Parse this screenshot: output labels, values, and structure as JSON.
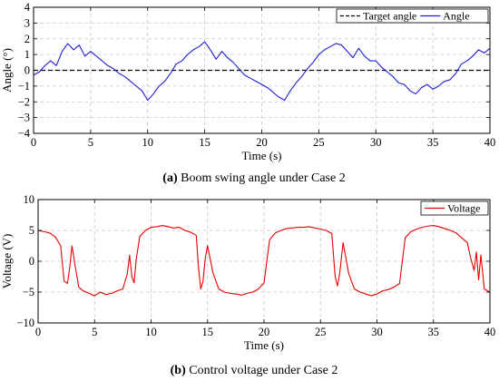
{
  "figure": {
    "panels": [
      {
        "caption_letter": "(a)",
        "caption_text": " Boom swing angle under Case 2"
      },
      {
        "caption_letter": "(b)",
        "caption_text": " Control voltage under Case 2"
      }
    ]
  },
  "chart_data": [
    {
      "type": "line",
      "title": "",
      "xlabel": "Time (s)",
      "ylabel": "Angle (°)",
      "xlim": [
        0,
        40
      ],
      "ylim": [
        -4,
        4
      ],
      "xticks": [
        0,
        5,
        10,
        15,
        20,
        25,
        30,
        35,
        40
      ],
      "yticks": [
        -4,
        -3,
        -2,
        -1,
        0,
        1,
        2,
        3,
        4
      ],
      "grid": true,
      "legend_position": "top-right",
      "series": [
        {
          "name": "Target angle",
          "color": "#000000",
          "dash": true,
          "x": [
            0,
            40
          ],
          "y": [
            0,
            0
          ]
        },
        {
          "name": "Angle",
          "color": "#1f1fd6",
          "dash": false,
          "x": [
            0,
            0.5,
            1,
            1.5,
            2,
            2.5,
            3,
            3.5,
            4,
            4.5,
            5,
            5.5,
            6,
            6.5,
            7,
            7.5,
            8,
            8.5,
            9,
            9.5,
            10,
            10.5,
            11,
            11.5,
            12,
            12.5,
            13,
            13.5,
            14,
            14.5,
            15,
            15.5,
            16,
            16.5,
            17,
            17.5,
            18,
            18.5,
            19,
            19.5,
            20,
            20.5,
            21,
            21.5,
            22,
            22.5,
            23,
            23.5,
            24,
            24.5,
            25,
            25.5,
            26,
            26.5,
            27,
            27.5,
            28,
            28.5,
            29,
            29.5,
            30,
            30.5,
            31,
            31.5,
            32,
            32.5,
            33,
            33.5,
            34,
            34.5,
            35,
            35.5,
            36,
            36.5,
            37,
            37.5,
            38,
            38.5,
            39,
            39.5,
            40
          ],
          "y": [
            -0.3,
            -0.1,
            0.3,
            0.6,
            0.3,
            1.2,
            1.7,
            1.3,
            1.6,
            0.9,
            1.2,
            0.9,
            0.6,
            0.3,
            0.1,
            -0.2,
            -0.4,
            -0.7,
            -1.0,
            -1.3,
            -1.9,
            -1.5,
            -1.0,
            -0.7,
            -0.2,
            0.4,
            0.6,
            1.0,
            1.3,
            1.5,
            1.8,
            1.3,
            0.7,
            1.2,
            0.8,
            0.5,
            0.1,
            -0.3,
            -0.5,
            -0.7,
            -0.9,
            -1.1,
            -1.4,
            -1.7,
            -1.9,
            -1.3,
            -0.8,
            -0.4,
            0.1,
            0.5,
            1.0,
            1.3,
            1.5,
            1.7,
            1.6,
            1.2,
            0.8,
            1.4,
            0.9,
            0.6,
            0.6,
            0.2,
            -0.1,
            -0.4,
            -0.8,
            -0.9,
            -1.3,
            -1.5,
            -1.1,
            -0.9,
            -1.2,
            -1.0,
            -0.7,
            -0.6,
            -0.2,
            0.4,
            0.6,
            0.9,
            1.3,
            1.1,
            1.4
          ]
        }
      ]
    },
    {
      "type": "line",
      "title": "",
      "xlabel": "Time (s)",
      "ylabel": "Voltage (V)",
      "xlim": [
        0,
        40
      ],
      "ylim": [
        -10,
        10
      ],
      "xticks": [
        0,
        5,
        10,
        15,
        20,
        25,
        30,
        35,
        40
      ],
      "yticks": [
        -10,
        -5,
        0,
        5,
        10
      ],
      "grid": true,
      "legend_position": "top-right",
      "series": [
        {
          "name": "Voltage",
          "color": "#e60000",
          "dash": false,
          "x": [
            0,
            0.5,
            1,
            1.5,
            2,
            2.3,
            2.6,
            2.8,
            3,
            3.3,
            3.6,
            4,
            4.5,
            5,
            5.5,
            6,
            6.5,
            7,
            7.5,
            7.9,
            8.1,
            8.3,
            8.5,
            8.7,
            9,
            9.5,
            10,
            10.5,
            11,
            11.5,
            12,
            12.5,
            13,
            13.5,
            14,
            14.2,
            14.4,
            14.6,
            14.8,
            15,
            15.5,
            16,
            16.5,
            17,
            17.5,
            18,
            18.5,
            19,
            19.5,
            20,
            20.5,
            21,
            21.5,
            22,
            22.5,
            23,
            23.5,
            24,
            24.5,
            25,
            25.5,
            26,
            26.3,
            26.5,
            26.7,
            27,
            27.5,
            28,
            28.5,
            29,
            29.5,
            30,
            30.5,
            31,
            31.5,
            32,
            32.5,
            33,
            33.5,
            34,
            34.5,
            35,
            35.5,
            36,
            36.5,
            37,
            37.5,
            38,
            38.3,
            38.6,
            38.8,
            39,
            39.2,
            39.5,
            40
          ],
          "y": [
            5.0,
            4.8,
            4.6,
            4.0,
            2.5,
            -3.2,
            -3.6,
            -1.0,
            2.5,
            -1.0,
            -4.2,
            -4.8,
            -5.2,
            -5.6,
            -5.0,
            -5.4,
            -5.2,
            -4.8,
            -4.5,
            -2.0,
            1.0,
            -2.5,
            -3.5,
            0.5,
            4.0,
            5.0,
            5.5,
            5.6,
            5.8,
            5.6,
            5.4,
            5.5,
            5.0,
            4.7,
            4.2,
            -1.0,
            -4.5,
            -3.2,
            0.5,
            2.5,
            -2.0,
            -4.5,
            -5.0,
            -5.2,
            -5.3,
            -5.5,
            -5.2,
            -5.0,
            -4.5,
            -3.5,
            3.5,
            4.6,
            5.0,
            5.3,
            5.4,
            5.5,
            5.5,
            5.6,
            5.4,
            5.2,
            5.0,
            4.5,
            -2.5,
            -4.0,
            -2.0,
            3.0,
            -2.0,
            -4.5,
            -5.0,
            -5.3,
            -5.6,
            -5.3,
            -4.8,
            -4.6,
            -4.2,
            -3.6,
            3.8,
            4.8,
            5.2,
            5.5,
            5.7,
            5.8,
            5.6,
            5.3,
            5.0,
            4.6,
            3.8,
            3.0,
            0.5,
            -1.5,
            1.5,
            -3.0,
            1.0,
            -4.5,
            -5.0
          ]
        }
      ]
    }
  ]
}
